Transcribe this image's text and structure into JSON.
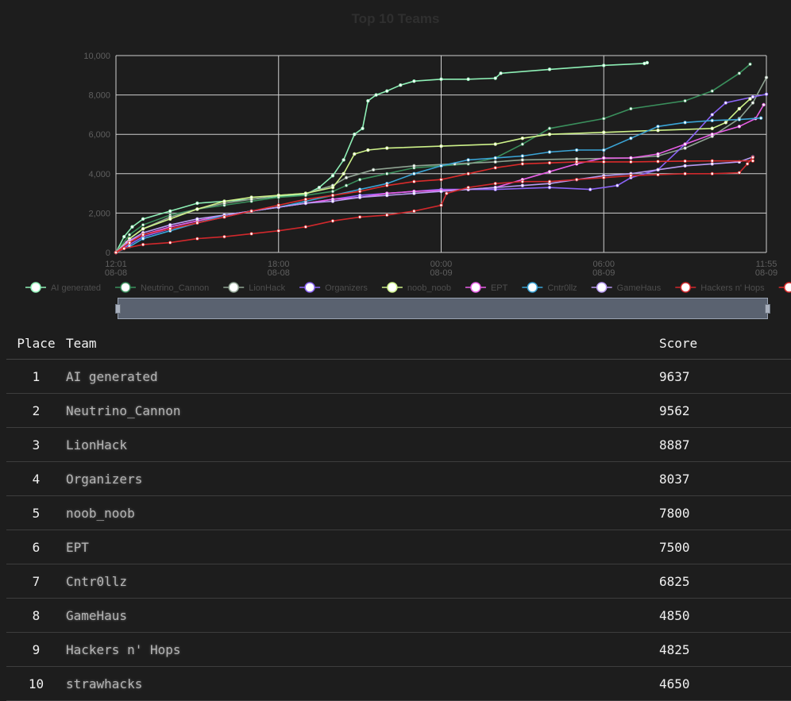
{
  "chart": {
    "title": "Top 10 Teams"
  },
  "chart_data": {
    "type": "line",
    "title": "Top 10 Teams",
    "xlabel": "",
    "ylabel": "",
    "x_ticks": [
      {
        "time": "12:01",
        "date": "08-08",
        "h": 0
      },
      {
        "time": "18:00",
        "date": "08-08",
        "h": 6
      },
      {
        "time": "00:00",
        "date": "08-09",
        "h": 12
      },
      {
        "time": "06:00",
        "date": "08-09",
        "h": 18
      },
      {
        "time": "11:55",
        "date": "08-09",
        "h": 24
      }
    ],
    "y_ticks": [
      "0",
      "2,000",
      "4,000",
      "6,000",
      "8,000",
      "10,000"
    ],
    "ylim": [
      0,
      10000
    ],
    "xlim_hours": [
      0,
      24
    ],
    "grid": true,
    "legend_position": "bottom",
    "series": [
      {
        "name": "AI generated",
        "color": "#8ef0b6",
        "points": [
          [
            0,
            0
          ],
          [
            0.3,
            800
          ],
          [
            0.6,
            1300
          ],
          [
            1,
            1700
          ],
          [
            2,
            2100
          ],
          [
            3,
            2500
          ],
          [
            4,
            2600
          ],
          [
            5,
            2700
          ],
          [
            6,
            2850
          ],
          [
            7,
            2950
          ],
          [
            7.5,
            3300
          ],
          [
            8,
            3900
          ],
          [
            8.4,
            4700
          ],
          [
            8.8,
            6000
          ],
          [
            9.1,
            6300
          ],
          [
            9.3,
            7700
          ],
          [
            9.6,
            8000
          ],
          [
            10,
            8200
          ],
          [
            10.5,
            8500
          ],
          [
            11,
            8700
          ],
          [
            12,
            8800
          ],
          [
            13,
            8800
          ],
          [
            14,
            8850
          ],
          [
            14.2,
            9100
          ],
          [
            16,
            9300
          ],
          [
            18,
            9500
          ],
          [
            19.5,
            9600
          ],
          [
            19.6,
            9637
          ]
        ]
      },
      {
        "name": "Neutrino_Cannon",
        "color": "#3a8f5c",
        "points": [
          [
            0,
            0
          ],
          [
            0.5,
            900
          ],
          [
            1,
            1400
          ],
          [
            2,
            1900
          ],
          [
            3,
            2200
          ],
          [
            4,
            2400
          ],
          [
            5,
            2600
          ],
          [
            6,
            2800
          ],
          [
            7,
            2900
          ],
          [
            8,
            3100
          ],
          [
            8.5,
            3400
          ],
          [
            9,
            3700
          ],
          [
            10,
            4000
          ],
          [
            11,
            4300
          ],
          [
            12,
            4400
          ],
          [
            13,
            4500
          ],
          [
            14,
            4800
          ],
          [
            15,
            5500
          ],
          [
            16,
            6300
          ],
          [
            18,
            6800
          ],
          [
            19,
            7300
          ],
          [
            21,
            7700
          ],
          [
            22,
            8200
          ],
          [
            23,
            9100
          ],
          [
            23.4,
            9562
          ]
        ]
      },
      {
        "name": "LionHack",
        "color": "#8fa392",
        "points": [
          [
            0,
            0
          ],
          [
            0.5,
            700
          ],
          [
            1,
            1200
          ],
          [
            2,
            1800
          ],
          [
            3,
            2200
          ],
          [
            4,
            2500
          ],
          [
            5,
            2700
          ],
          [
            6,
            2900
          ],
          [
            7,
            3000
          ],
          [
            8,
            3400
          ],
          [
            8.5,
            3800
          ],
          [
            9.5,
            4200
          ],
          [
            11,
            4400
          ],
          [
            12.5,
            4500
          ],
          [
            14,
            4600
          ],
          [
            15,
            4700
          ],
          [
            17,
            4750
          ],
          [
            19,
            4800
          ],
          [
            20,
            4900
          ],
          [
            21,
            5300
          ],
          [
            22,
            5900
          ],
          [
            23,
            6800
          ],
          [
            23.5,
            7600
          ],
          [
            24,
            8887
          ]
        ]
      },
      {
        "name": "Organizers",
        "color": "#8a63f5",
        "points": [
          [
            0,
            0
          ],
          [
            0.5,
            400
          ],
          [
            1,
            800
          ],
          [
            2,
            1200
          ],
          [
            3,
            1500
          ],
          [
            4,
            1800
          ],
          [
            5,
            2100
          ],
          [
            6,
            2300
          ],
          [
            7,
            2500
          ],
          [
            8,
            2700
          ],
          [
            9,
            2900
          ],
          [
            10,
            3000
          ],
          [
            11,
            3100
          ],
          [
            12,
            3200
          ],
          [
            14,
            3200
          ],
          [
            16,
            3300
          ],
          [
            17.5,
            3200
          ],
          [
            18.5,
            3400
          ],
          [
            19,
            3800
          ],
          [
            20,
            4200
          ],
          [
            21,
            5500
          ],
          [
            22,
            7000
          ],
          [
            22.5,
            7600
          ],
          [
            23.5,
            7900
          ],
          [
            24,
            8037
          ]
        ]
      },
      {
        "name": "noob_noob",
        "color": "#cef28a",
        "points": [
          [
            0,
            0
          ],
          [
            0.5,
            700
          ],
          [
            1,
            1200
          ],
          [
            2,
            1700
          ],
          [
            3,
            2200
          ],
          [
            4,
            2600
          ],
          [
            5,
            2800
          ],
          [
            6,
            2900
          ],
          [
            7,
            3000
          ],
          [
            8,
            3300
          ],
          [
            8.4,
            4000
          ],
          [
            8.8,
            5000
          ],
          [
            9.3,
            5200
          ],
          [
            10,
            5300
          ],
          [
            12,
            5400
          ],
          [
            14,
            5500
          ],
          [
            15,
            5800
          ],
          [
            16,
            6000
          ],
          [
            18,
            6100
          ],
          [
            20,
            6200
          ],
          [
            22,
            6300
          ],
          [
            22.5,
            6600
          ],
          [
            23,
            7300
          ],
          [
            23.4,
            7800
          ]
        ]
      },
      {
        "name": "EPT",
        "color": "#e85ee6",
        "points": [
          [
            0,
            0
          ],
          [
            0.4,
            500
          ],
          [
            1,
            900
          ],
          [
            2,
            1300
          ],
          [
            3,
            1600
          ],
          [
            4,
            1900
          ],
          [
            5,
            2100
          ],
          [
            6,
            2300
          ],
          [
            7,
            2500
          ],
          [
            8,
            2700
          ],
          [
            9,
            2800
          ],
          [
            10,
            3000
          ],
          [
            11,
            3100
          ],
          [
            12,
            3150
          ],
          [
            13,
            3200
          ],
          [
            14,
            3300
          ],
          [
            15,
            3700
          ],
          [
            16,
            4100
          ],
          [
            17,
            4500
          ],
          [
            18,
            4800
          ],
          [
            19,
            4800
          ],
          [
            20,
            5000
          ],
          [
            21,
            5500
          ],
          [
            22,
            6000
          ],
          [
            23,
            6400
          ],
          [
            23.6,
            6800
          ],
          [
            23.9,
            7500
          ]
        ]
      },
      {
        "name": "Cntr0llz",
        "color": "#3aa4d6",
        "points": [
          [
            0,
            0
          ],
          [
            0.5,
            300
          ],
          [
            1,
            700
          ],
          [
            2,
            1100
          ],
          [
            3,
            1500
          ],
          [
            4,
            1900
          ],
          [
            5,
            2100
          ],
          [
            6,
            2300
          ],
          [
            7,
            2600
          ],
          [
            8,
            2900
          ],
          [
            9,
            3200
          ],
          [
            10,
            3500
          ],
          [
            11,
            4000
          ],
          [
            12,
            4400
          ],
          [
            13,
            4700
          ],
          [
            14,
            4800
          ],
          [
            15,
            4900
          ],
          [
            16,
            5100
          ],
          [
            17,
            5200
          ],
          [
            18,
            5200
          ],
          [
            19,
            5800
          ],
          [
            20,
            6400
          ],
          [
            21,
            6600
          ],
          [
            22,
            6700
          ],
          [
            23,
            6750
          ],
          [
            23.8,
            6825
          ]
        ]
      },
      {
        "name": "GameHaus",
        "color": "#b89af2",
        "points": [
          [
            0,
            0
          ],
          [
            0.5,
            600
          ],
          [
            1,
            1000
          ],
          [
            2,
            1400
          ],
          [
            3,
            1700
          ],
          [
            4,
            1900
          ],
          [
            5,
            2100
          ],
          [
            6,
            2300
          ],
          [
            7,
            2500
          ],
          [
            8,
            2600
          ],
          [
            9,
            2800
          ],
          [
            10,
            2900
          ],
          [
            11,
            3000
          ],
          [
            12,
            3100
          ],
          [
            13,
            3200
          ],
          [
            14,
            3300
          ],
          [
            15,
            3400
          ],
          [
            16,
            3500
          ],
          [
            17,
            3700
          ],
          [
            18,
            3900
          ],
          [
            19,
            4000
          ],
          [
            20,
            4200
          ],
          [
            21,
            4400
          ],
          [
            22,
            4500
          ],
          [
            23,
            4600
          ],
          [
            23.5,
            4850
          ]
        ]
      },
      {
        "name": "Hackers n' Hops",
        "color": "#d0282c",
        "points": [
          [
            0,
            0
          ],
          [
            0.3,
            200
          ],
          [
            1,
            400
          ],
          [
            2,
            500
          ],
          [
            3,
            700
          ],
          [
            4,
            800
          ],
          [
            5,
            950
          ],
          [
            6,
            1100
          ],
          [
            7,
            1300
          ],
          [
            8,
            1600
          ],
          [
            9,
            1800
          ],
          [
            10,
            1900
          ],
          [
            11,
            2100
          ],
          [
            12,
            2400
          ],
          [
            12.2,
            3000
          ],
          [
            13,
            3300
          ],
          [
            14,
            3500
          ],
          [
            15,
            3600
          ],
          [
            16,
            3600
          ],
          [
            17,
            3700
          ],
          [
            18,
            3800
          ],
          [
            19,
            3900
          ],
          [
            20,
            3950
          ],
          [
            21,
            4000
          ],
          [
            22,
            4000
          ],
          [
            23,
            4050
          ],
          [
            23.3,
            4500
          ],
          [
            23.5,
            4825
          ]
        ]
      },
      {
        "name": "strawhacks",
        "color": "#d92b2b",
        "points": [
          [
            0,
            0
          ],
          [
            0.5,
            500
          ],
          [
            1,
            900
          ],
          [
            2,
            1200
          ],
          [
            3,
            1500
          ],
          [
            4,
            1800
          ],
          [
            5,
            2100
          ],
          [
            6,
            2400
          ],
          [
            7,
            2700
          ],
          [
            8,
            2900
          ],
          [
            9,
            3100
          ],
          [
            10,
            3400
          ],
          [
            11,
            3600
          ],
          [
            12,
            3700
          ],
          [
            13,
            4000
          ],
          [
            14,
            4300
          ],
          [
            15,
            4500
          ],
          [
            16,
            4550
          ],
          [
            17,
            4600
          ],
          [
            18,
            4600
          ],
          [
            19,
            4600
          ],
          [
            20,
            4620
          ],
          [
            21,
            4640
          ],
          [
            22,
            4650
          ],
          [
            23.5,
            4650
          ]
        ]
      }
    ]
  },
  "table": {
    "headers": {
      "place": "Place",
      "team": "Team",
      "score": "Score"
    },
    "rows": [
      {
        "place": "1",
        "team": "AI generated",
        "score": "9637"
      },
      {
        "place": "2",
        "team": "Neutrino_Cannon",
        "score": "9562"
      },
      {
        "place": "3",
        "team": "LionHack",
        "score": "8887"
      },
      {
        "place": "4",
        "team": "Organizers",
        "score": "8037"
      },
      {
        "place": "5",
        "team": "noob_noob",
        "score": "7800"
      },
      {
        "place": "6",
        "team": "EPT",
        "score": "7500"
      },
      {
        "place": "7",
        "team": "Cntr0llz",
        "score": "6825"
      },
      {
        "place": "8",
        "team": "GameHaus",
        "score": "4850"
      },
      {
        "place": "9",
        "team": "Hackers n' Hops",
        "score": "4825"
      },
      {
        "place": "10",
        "team": "strawhacks",
        "score": "4650"
      }
    ]
  }
}
